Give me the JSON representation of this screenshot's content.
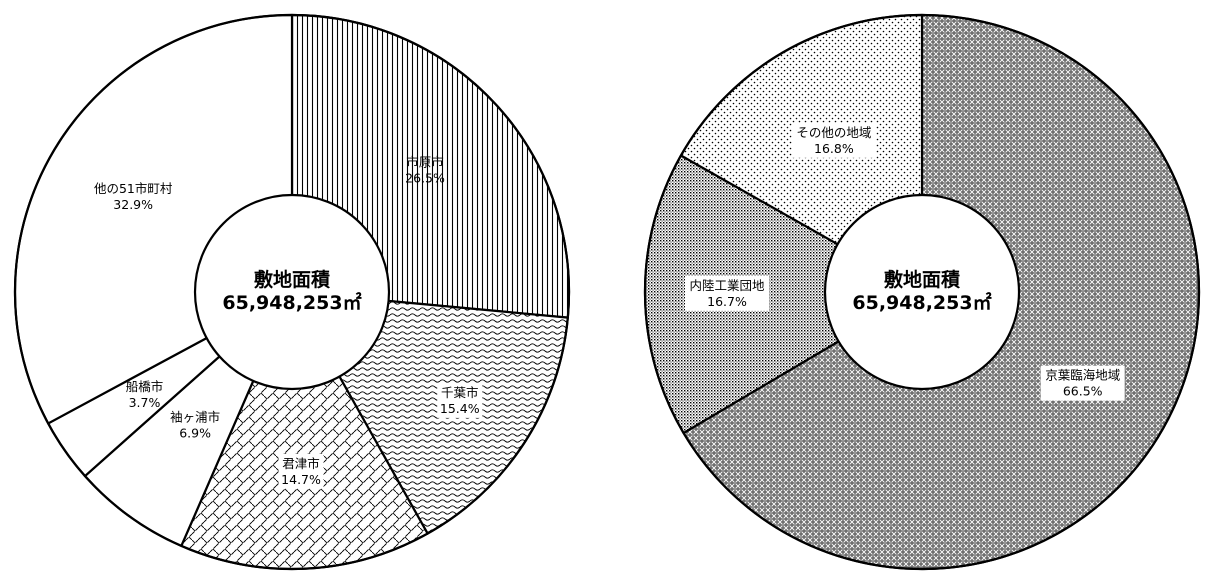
{
  "chart_data": [
    {
      "type": "pie",
      "center_label": {
        "line1": "敷地面積",
        "line2": "65,948,253㎡"
      },
      "slices": [
        {
          "name": "市原市",
          "percent": 26.5,
          "value_text": "26.5%",
          "pattern": "vlines"
        },
        {
          "name": "千葉市",
          "percent": 15.4,
          "value_text": "15.4%",
          "pattern": "waves"
        },
        {
          "name": "君津市",
          "percent": 14.7,
          "value_text": "14.7%",
          "pattern": "weave"
        },
        {
          "name": "袖ヶ浦市",
          "percent": 6.9,
          "value_text": "6.9%",
          "pattern": "none"
        },
        {
          "name": "船橋市",
          "percent": 3.7,
          "value_text": "3.7%",
          "pattern": "none"
        },
        {
          "name": "他の51市町村",
          "percent": 32.9,
          "value_text": "32.9%",
          "pattern": "none"
        }
      ]
    },
    {
      "type": "pie",
      "center_label": {
        "line1": "敷地面積",
        "line2": "65,948,253㎡"
      },
      "slices": [
        {
          "name": "京葉臨海地域",
          "percent": 66.5,
          "value_text": "66.5%",
          "pattern": "checker"
        },
        {
          "name": "内陸工業団地",
          "percent": 16.7,
          "value_text": "16.7%",
          "pattern": "densedots"
        },
        {
          "name": "その他の地域",
          "percent": 16.8,
          "value_text": "16.8%",
          "pattern": "sparsedots"
        }
      ]
    }
  ]
}
